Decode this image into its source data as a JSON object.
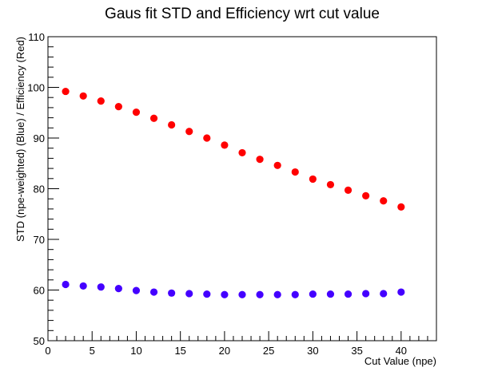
{
  "chart_data": {
    "type": "scatter",
    "title": "Gaus fit STD and Efficiency wrt cut value",
    "xlabel": "Cut Value (npe)",
    "ylabel": "STD (npe-weighted) (Blue) / Efficiency (Red)",
    "xlim": [
      0,
      44
    ],
    "ylim": [
      50,
      110
    ],
    "xticks": [
      0,
      5,
      10,
      15,
      20,
      25,
      30,
      35,
      40
    ],
    "yticks": [
      50,
      60,
      70,
      80,
      90,
      100,
      110
    ],
    "grid": false,
    "series": [
      {
        "color": "#ff0000",
        "x": [
          2,
          4,
          6,
          8,
          10,
          12,
          14,
          16,
          18,
          20,
          22,
          24,
          26,
          28,
          30,
          32,
          34,
          36,
          38,
          40
        ],
        "y": [
          99.2,
          98.3,
          97.3,
          96.2,
          95.1,
          93.9,
          92.6,
          91.3,
          90.0,
          88.6,
          87.1,
          85.8,
          84.6,
          83.3,
          81.9,
          80.8,
          79.7,
          78.6,
          77.6,
          76.4
        ]
      },
      {
        "color": "#4400ff",
        "x": [
          2,
          4,
          6,
          8,
          10,
          12,
          14,
          16,
          18,
          20,
          22,
          24,
          26,
          28,
          30,
          32,
          34,
          36,
          38,
          40
        ],
        "y": [
          61.1,
          60.8,
          60.6,
          60.3,
          59.9,
          59.6,
          59.4,
          59.3,
          59.2,
          59.1,
          59.1,
          59.1,
          59.1,
          59.1,
          59.2,
          59.2,
          59.2,
          59.3,
          59.3,
          59.6
        ]
      }
    ]
  }
}
